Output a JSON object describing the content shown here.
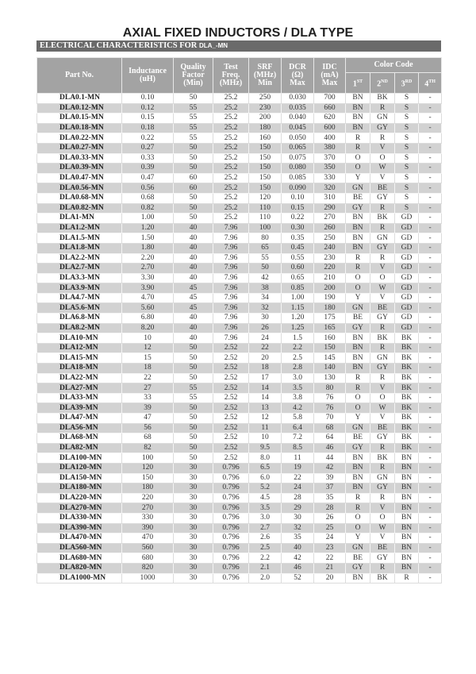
{
  "title": "AXIAL FIXED INDUCTORS / DLA TYPE",
  "banner": {
    "text": "ELECTRICAL CHARACTERISTICS FOR ",
    "part": "DLA_-MN"
  },
  "table": {
    "headers": {
      "part_no": "Part No.",
      "inductance": [
        "Inductance",
        "(uH)"
      ],
      "quality": [
        "Quality",
        "Factor",
        "(Min)"
      ],
      "test": [
        "Test",
        "Freq.",
        "(MHz)"
      ],
      "srf": [
        "SRF",
        "(MHz)",
        "Min"
      ],
      "dcr": [
        "DCR",
        "(Ω)",
        "Max"
      ],
      "idc": [
        "IDC",
        "(mA)",
        "Max"
      ],
      "color_code": "Color Code",
      "bands": [
        [
          "1",
          "ST"
        ],
        [
          "2",
          "ND"
        ],
        [
          "3",
          "RD"
        ],
        [
          "4",
          "TH"
        ]
      ]
    },
    "rows": [
      [
        "DLA0.1-MN",
        "0.10",
        "50",
        "25.2",
        "250",
        "0.030",
        "700",
        "BN",
        "BK",
        "S",
        "-"
      ],
      [
        "DLA0.12-MN",
        "0.12",
        "55",
        "25.2",
        "230",
        "0.035",
        "660",
        "BN",
        "R",
        "S",
        "-"
      ],
      [
        "DLA0.15-MN",
        "0.15",
        "55",
        "25.2",
        "200",
        "0.040",
        "620",
        "BN",
        "GN",
        "S",
        "-"
      ],
      [
        "DLA0.18-MN",
        "0.18",
        "55",
        "25.2",
        "180",
        "0.045",
        "600",
        "BN",
        "GY",
        "S",
        "-"
      ],
      [
        "DLA0.22-MN",
        "0.22",
        "55",
        "25.2",
        "160",
        "0.050",
        "400",
        "R",
        "R",
        "S",
        "-"
      ],
      [
        "DLA0.27-MN",
        "0.27",
        "50",
        "25.2",
        "150",
        "0.065",
        "380",
        "R",
        "V",
        "S",
        "-"
      ],
      [
        "DLA0.33-MN",
        "0.33",
        "50",
        "25.2",
        "150",
        "0.075",
        "370",
        "O",
        "O",
        "S",
        "-"
      ],
      [
        "DLA0.39-MN",
        "0.39",
        "50",
        "25.2",
        "150",
        "0.080",
        "350",
        "O",
        "W",
        "S",
        "-"
      ],
      [
        "DLA0.47-MN",
        "0.47",
        "60",
        "25.2",
        "150",
        "0.085",
        "330",
        "Y",
        "V",
        "S",
        "-"
      ],
      [
        "DLA0.56-MN",
        "0.56",
        "60",
        "25.2",
        "150",
        "0.090",
        "320",
        "GN",
        "BE",
        "S",
        "-"
      ],
      [
        "DLA0.68-MN",
        "0.68",
        "50",
        "25.2",
        "120",
        "0.10",
        "310",
        "BE",
        "GY",
        "S",
        "-"
      ],
      [
        "DLA0.82-MN",
        "0.82",
        "50",
        "25.2",
        "110",
        "0.15",
        "290",
        "GY",
        "R",
        "S",
        "-"
      ],
      [
        "DLA1-MN",
        "1.00",
        "50",
        "25.2",
        "110",
        "0.22",
        "270",
        "BN",
        "BK",
        "GD",
        "-"
      ],
      [
        "DLA1.2-MN",
        "1.20",
        "40",
        "7.96",
        "100",
        "0.30",
        "260",
        "BN",
        "R",
        "GD",
        "-"
      ],
      [
        "DLA1.5-MN",
        "1.50",
        "40",
        "7.96",
        "80",
        "0.35",
        "250",
        "BN",
        "GN",
        "GD",
        "-"
      ],
      [
        "DLA1.8-MN",
        "1.80",
        "40",
        "7.96",
        "65",
        "0.45",
        "240",
        "BN",
        "GY",
        "GD",
        "-"
      ],
      [
        "DLA2.2-MN",
        "2.20",
        "40",
        "7.96",
        "55",
        "0.55",
        "230",
        "R",
        "R",
        "GD",
        "-"
      ],
      [
        "DLA2.7-MN",
        "2.70",
        "40",
        "7.96",
        "50",
        "0.60",
        "220",
        "R",
        "V",
        "GD",
        "-"
      ],
      [
        "DLA3.3-MN",
        "3.30",
        "40",
        "7.96",
        "42",
        "0.65",
        "210",
        "O",
        "O",
        "GD",
        "-"
      ],
      [
        "DLA3.9-MN",
        "3.90",
        "45",
        "7.96",
        "38",
        "0.85",
        "200",
        "O",
        "W",
        "GD",
        "-"
      ],
      [
        "DLA4.7-MN",
        "4.70",
        "45",
        "7.96",
        "34",
        "1.00",
        "190",
        "Y",
        "V",
        "GD",
        "-"
      ],
      [
        "DLA5.6-MN",
        "5.60",
        "45",
        "7.96",
        "32",
        "1.15",
        "180",
        "GN",
        "BE",
        "GD",
        "-"
      ],
      [
        "DLA6.8-MN",
        "6.80",
        "40",
        "7.96",
        "30",
        "1.20",
        "175",
        "BE",
        "GY",
        "GD",
        "-"
      ],
      [
        "DLA8.2-MN",
        "8.20",
        "40",
        "7.96",
        "26",
        "1.25",
        "165",
        "GY",
        "R",
        "GD",
        "-"
      ],
      [
        "DLA10-MN",
        "10",
        "40",
        "7.96",
        "24",
        "1.5",
        "160",
        "BN",
        "BK",
        "BK",
        "-"
      ],
      [
        "DLA12-MN",
        "12",
        "50",
        "2.52",
        "22",
        "2.2",
        "150",
        "BN",
        "R",
        "BK",
        "-"
      ],
      [
        "DLA15-MN",
        "15",
        "50",
        "2.52",
        "20",
        "2.5",
        "145",
        "BN",
        "GN",
        "BK",
        "-"
      ],
      [
        "DLA18-MN",
        "18",
        "50",
        "2.52",
        "18",
        "2.8",
        "140",
        "BN",
        "GY",
        "BK",
        "-"
      ],
      [
        "DLA22-MN",
        "22",
        "50",
        "2.52",
        "17",
        "3.0",
        "130",
        "R",
        "R",
        "BK",
        "-"
      ],
      [
        "DLA27-MN",
        "27",
        "55",
        "2.52",
        "14",
        "3.5",
        "80",
        "R",
        "V",
        "BK",
        "-"
      ],
      [
        "DLA33-MN",
        "33",
        "55",
        "2.52",
        "14",
        "3.8",
        "76",
        "O",
        "O",
        "BK",
        "-"
      ],
      [
        "DLA39-MN",
        "39",
        "50",
        "2.52",
        "13",
        "4.2",
        "76",
        "O",
        "W",
        "BK",
        "-"
      ],
      [
        "DLA47-MN",
        "47",
        "50",
        "2.52",
        "12",
        "5.8",
        "70",
        "Y",
        "V",
        "BK",
        "-"
      ],
      [
        "DLA56-MN",
        "56",
        "50",
        "2.52",
        "11",
        "6.4",
        "68",
        "GN",
        "BE",
        "BK",
        "-"
      ],
      [
        "DLA68-MN",
        "68",
        "50",
        "2.52",
        "10",
        "7.2",
        "64",
        "BE",
        "GY",
        "BK",
        "-"
      ],
      [
        "DLA82-MN",
        "82",
        "50",
        "2.52",
        "9.5",
        "8.5",
        "46",
        "GY",
        "R",
        "BK",
        "-"
      ],
      [
        "DLA100-MN",
        "100",
        "50",
        "2.52",
        "8.0",
        "11",
        "44",
        "BN",
        "BK",
        "BN",
        "-"
      ],
      [
        "DLA120-MN",
        "120",
        "30",
        "0.796",
        "6.5",
        "19",
        "42",
        "BN",
        "R",
        "BN",
        "-"
      ],
      [
        "DLA150-MN",
        "150",
        "30",
        "0.796",
        "6.0",
        "22",
        "39",
        "BN",
        "GN",
        "BN",
        "-"
      ],
      [
        "DLA180-MN",
        "180",
        "30",
        "0.796",
        "5.2",
        "24",
        "37",
        "BN",
        "GY",
        "BN",
        "-"
      ],
      [
        "DLA220-MN",
        "220",
        "30",
        "0.796",
        "4.5",
        "28",
        "35",
        "R",
        "R",
        "BN",
        "-"
      ],
      [
        "DLA270-MN",
        "270",
        "30",
        "0.796",
        "3.5",
        "29",
        "28",
        "R",
        "V",
        "BN",
        "-"
      ],
      [
        "DLA330-MN",
        "330",
        "30",
        "0.796",
        "3.0",
        "30",
        "26",
        "O",
        "O",
        "BN",
        "-"
      ],
      [
        "DLA390-MN",
        "390",
        "30",
        "0.796",
        "2.7",
        "32",
        "25",
        "O",
        "W",
        "BN",
        "-"
      ],
      [
        "DLA470-MN",
        "470",
        "30",
        "0.796",
        "2.6",
        "35",
        "24",
        "Y",
        "V",
        "BN",
        "-"
      ],
      [
        "DLA560-MN",
        "560",
        "30",
        "0.796",
        "2.5",
        "40",
        "23",
        "GN",
        "BE",
        "BN",
        "-"
      ],
      [
        "DLA680-MN",
        "680",
        "30",
        "0.796",
        "2.2",
        "42",
        "22",
        "BE",
        "GY",
        "BN",
        "-"
      ],
      [
        "DLA820-MN",
        "820",
        "30",
        "0.796",
        "2.1",
        "46",
        "21",
        "GY",
        "R",
        "BN",
        "-"
      ],
      [
        "DLA1000-MN",
        "1000",
        "30",
        "0.796",
        "2.0",
        "52",
        "20",
        "BN",
        "BK",
        "R",
        "-"
      ]
    ]
  },
  "colors": {
    "header_bg": "#a3a3a3",
    "banner_bg": "#6a6a6a",
    "alt_row": "#d2d2d2"
  }
}
